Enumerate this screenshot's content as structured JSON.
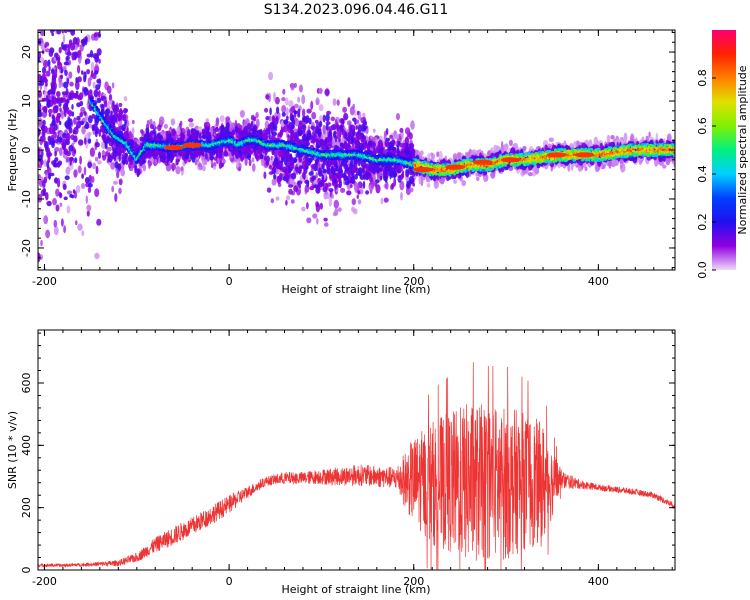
{
  "title": "S134.2023.096.04.46.G11",
  "chart_data": [
    {
      "type": "heatmap",
      "xlabel": "Height of straight line (km)",
      "ylabel": "Frequency (Hz)",
      "xlim": [
        -207,
        483
      ],
      "ylim": [
        -24.5,
        24.5
      ],
      "x_ticks": [
        -200,
        0,
        200,
        400
      ],
      "x_tick_labels": [
        "-200",
        "0",
        "200",
        "400"
      ],
      "y_ticks": [
        -20,
        -10,
        0,
        10,
        20
      ],
      "y_tick_labels": [
        "-20",
        "-10",
        "0",
        "10",
        "20"
      ],
      "ridge": {
        "description_points_x": [
          -150,
          -140,
          -125,
          -110,
          -100,
          -90,
          -80,
          -60,
          -40,
          -20,
          0,
          10,
          20,
          30,
          40,
          60,
          80,
          100,
          120,
          140,
          160,
          180,
          200,
          220,
          240,
          260,
          280,
          300,
          320,
          340,
          360,
          380,
          400,
          420,
          440,
          460,
          483
        ],
        "frequency_hz": [
          10,
          7,
          3,
          1,
          -2,
          1,
          1,
          0.5,
          1,
          1,
          2,
          1,
          2,
          2,
          1,
          1,
          0,
          -1,
          -1,
          -1,
          -2,
          -2,
          -3,
          -4,
          -4,
          -3,
          -3,
          -2,
          -2,
          -1.5,
          -1,
          -1,
          -1,
          -0.5,
          0,
          0,
          0
        ]
      },
      "colorbar": {
        "label": "Normalized spectral amplitude",
        "range": [
          0.0,
          1.0
        ],
        "ticks": [
          0.0,
          0.2,
          0.4,
          0.6,
          0.8
        ],
        "tick_labels": [
          "0.0",
          "0.2",
          "0.4",
          "0.6",
          "0.8"
        ],
        "colormap": "rainbow",
        "stops": [
          "#f0d8f8",
          "#9000e0",
          "#2010f0",
          "#0040ff",
          "#00d0ff",
          "#00f080",
          "#80f000",
          "#e0e000",
          "#ff8000",
          "#ff2000",
          "#ff0070"
        ]
      }
    },
    {
      "type": "line",
      "xlabel": "Height of straight line (km)",
      "ylabel": "SNR (10 * v/v)",
      "xlim": [
        -207,
        483
      ],
      "ylim": [
        0,
        770
      ],
      "x_ticks": [
        -200,
        0,
        200,
        400
      ],
      "x_tick_labels": [
        "-200",
        "0",
        "200",
        "400"
      ],
      "y_ticks": [
        0,
        200,
        400,
        600
      ],
      "y_tick_labels": [
        "0",
        "200",
        "400",
        "600"
      ],
      "color": "#ee3333",
      "series": [
        {
          "x": [
            -207,
            -180,
            -150,
            -120,
            -100,
            -80,
            -60,
            -40,
            -20,
            0,
            20,
            40,
            60,
            80,
            100,
            120,
            140,
            160,
            180,
            200,
            220,
            240,
            260,
            280,
            300,
            320,
            340,
            360,
            380,
            400,
            420,
            440,
            460,
            483
          ],
          "center": [
            15,
            15,
            18,
            22,
            40,
            80,
            110,
            140,
            175,
            210,
            250,
            285,
            295,
            295,
            300,
            300,
            305,
            300,
            295,
            285,
            280,
            280,
            280,
            280,
            280,
            285,
            275,
            290,
            275,
            265,
            258,
            250,
            240,
            205
          ],
          "noise_amplitude": [
            5,
            5,
            6,
            10,
            15,
            25,
            30,
            30,
            30,
            30,
            20,
            15,
            20,
            20,
            25,
            30,
            35,
            35,
            35,
            140,
            200,
            230,
            260,
            250,
            250,
            220,
            200,
            30,
            15,
            10,
            10,
            10,
            10,
            10
          ]
        }
      ]
    }
  ]
}
